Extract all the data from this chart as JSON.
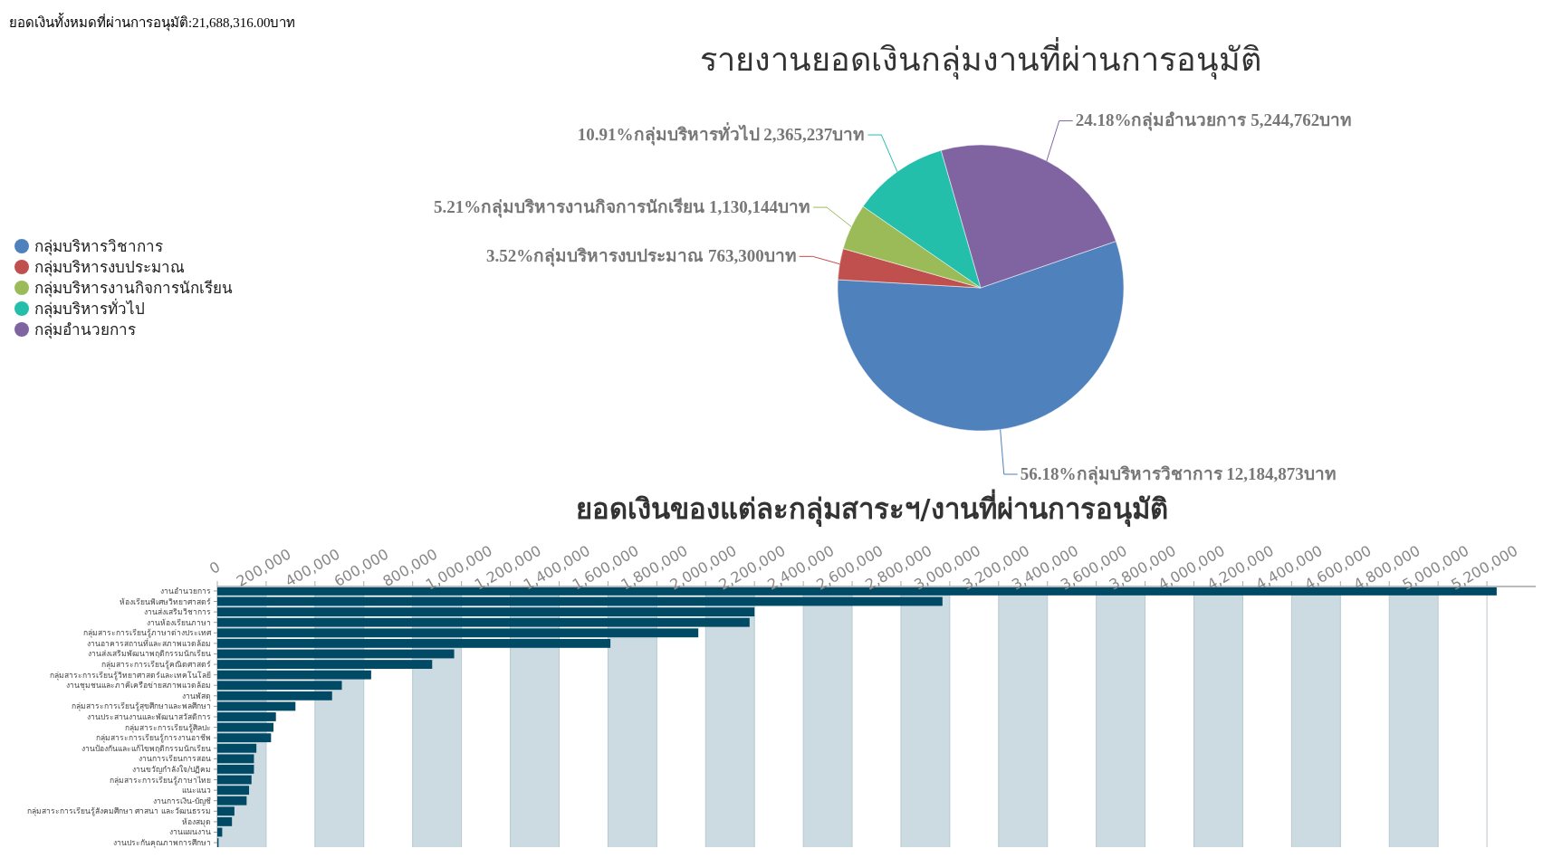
{
  "chart_data": [
    {
      "type": "pie",
      "title": "รายงานยอดเงินกลุ่มงานที่ผ่านการอนุมัติ",
      "annotations": [
        "ยอดเงินทั้งหมดที่ผ่านการอนุมัติ:21,688,316.00บาท"
      ],
      "legend": "left",
      "categories": [
        "กลุ่มบริหารวิชาการ",
        "กลุ่มบริหารงบประมาณ",
        "กลุ่มบริหารงานกิจการนักเรียน",
        "กลุ่มบริหารทั่วไป",
        "กลุ่มอำนวยการ"
      ],
      "values": [
        12184873,
        763300,
        1130144,
        2365237,
        5244762
      ],
      "colors": [
        "#4f81bd",
        "#c0504d",
        "#9bbb59",
        "#23bfaa",
        "#8064a2"
      ],
      "value_labels": [
        "56.18%กลุ่มบริหารวิชาการ 12,184,873บาท",
        "3.52%กลุ่มบริหารงบประมาณ 763,300บาท",
        "5.21%กลุ่มบริหารงานกิจการนักเรียน 1,130,144บาท",
        "10.91%กลุ่มบริหารทั่วไป 2,365,237บาท",
        "24.18%กลุ่มอำนวยการ 5,244,762บาท"
      ]
    },
    {
      "type": "bar",
      "orientation": "horizontal",
      "title": "ยอดเงินของแต่ละกลุ่มสาระฯ/งานที่ผ่านการอนุมัติ",
      "grid": "x",
      "color": "#004a66",
      "categories": [
        "งานอำนวยการ",
        "ห้องเรียนพิเศษวิทยาศาสตร์",
        "งานส่งเสริมวิชาการ",
        "งานห้องเรียนภาษา",
        "กลุ่มสาระการเรียนรู้ภาษาต่างประเทศ",
        "งานอาคารสถานที่และสภาพแวดล้อม",
        "งานส่งเสริมพัฒนาพฤติกรรมนักเรียน",
        "กลุ่มสาระการเรียนรู้คณิตศาสตร์",
        "กลุ่มสาระการเรียนรู้วิทยาศาสตร์และเทคโนโลยี",
        "งานชุมชนและภาคีเครือข่ายสภาพแวดล้อม",
        "งานพัสดุ",
        "กลุ่มสาระการเรียนรู้สุขศึกษาและพลศึกษา",
        "งานประสานงานและพัฒนาสวัสดิการ",
        "กลุ่มสาระการเรียนรู้ศิลปะ",
        "กลุ่มสาระการเรียนรู้การงานอาชีพ",
        "งานป้องกันและแก้ไขพฤติกรรมนักเรียน",
        "งานการเรียนการสอน",
        "งานขวัญกำลังใจ/ปฏิคม",
        "กลุ่มสาระการเรียนรู้ภาษาไทย",
        "แนะแนว",
        "งานการเงิน-บัญชี",
        "กลุ่มสาระการเรียนรู้สังคมศึกษา ศาสนา และวัฒนธรรม",
        "ห้องสมุด",
        "งานแผนงาน",
        "งานประกันคุณภาพการศึกษา"
      ],
      "values": [
        5240000,
        2970000,
        2200000,
        2180000,
        1970000,
        1610000,
        970000,
        880000,
        630000,
        510000,
        470000,
        320000,
        240000,
        230000,
        220000,
        160000,
        150000,
        150000,
        140000,
        130000,
        120000,
        70000,
        60000,
        20000,
        5000
      ],
      "xlim": [
        0,
        5400000
      ],
      "xticks": [
        {
          "value": 0,
          "label": "0"
        },
        {
          "value": 200000,
          "label": "200,000"
        },
        {
          "value": 400000,
          "label": "400,000"
        },
        {
          "value": 600000,
          "label": "600,000"
        },
        {
          "value": 800000,
          "label": "800,000"
        },
        {
          "value": 1000000,
          "label": "1,000,000"
        },
        {
          "value": 1200000,
          "label": "1,200,000"
        },
        {
          "value": 1400000,
          "label": "1,400,000"
        },
        {
          "value": 1600000,
          "label": "1,600,000"
        },
        {
          "value": 1800000,
          "label": "1,800,000"
        },
        {
          "value": 2000000,
          "label": "2,000,000"
        },
        {
          "value": 2200000,
          "label": "2,200,000"
        },
        {
          "value": 2400000,
          "label": "2,400,000"
        },
        {
          "value": 2600000,
          "label": "2,600,000"
        },
        {
          "value": 2800000,
          "label": "2,800,000"
        },
        {
          "value": 3000000,
          "label": "3,000,000"
        },
        {
          "value": 3200000,
          "label": "3,200,000"
        },
        {
          "value": 3400000,
          "label": "3,400,000"
        },
        {
          "value": 3600000,
          "label": "3,600,000"
        },
        {
          "value": 3800000,
          "label": "3,800,000"
        },
        {
          "value": 4000000,
          "label": "4,000,000"
        },
        {
          "value": 4200000,
          "label": "4,200,000"
        },
        {
          "value": 4400000,
          "label": "4,400,000"
        },
        {
          "value": 4600000,
          "label": "4,600,000"
        },
        {
          "value": 4800000,
          "label": "4,800,000"
        },
        {
          "value": 5000000,
          "label": "5,000,000"
        },
        {
          "value": 5200000,
          "label": "5,200,000"
        }
      ]
    }
  ]
}
